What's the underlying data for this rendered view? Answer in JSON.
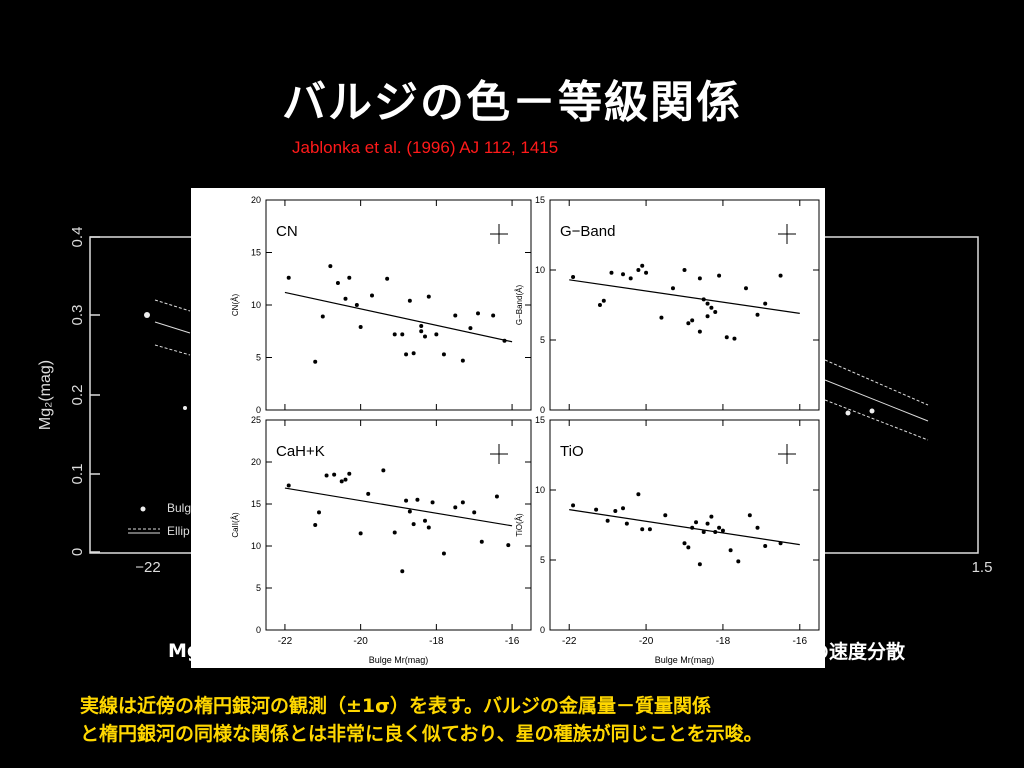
{
  "slide": {
    "title": "バルジの色－等級関係",
    "citation": "Jablonka et al. (1996) AJ 112, 1415",
    "caption_left": "Mg",
    "caption_right": "の速度分散",
    "footer_line1": "実線は近傍の楕円銀河の観測（±1σ）を表す。バルジの金属量－質量関係",
    "footer_line2": "と楕円銀河の同様な関係とは非常に良く似ており、星の種族が同じことを示唆。"
  },
  "background_figure": {
    "ylabel": "Mg₂(mag)",
    "yticks": [
      "0",
      "0.1",
      "0.2",
      "0.3",
      "0.4"
    ],
    "xticks_visible": [
      "−22",
      "1.5"
    ],
    "legend_items": [
      "Bulg",
      "Ellip"
    ]
  },
  "chart_data": [
    {
      "type": "scatter",
      "panel": "CN",
      "xlabel": "",
      "ylabel": "CN(Å)",
      "xlim": [
        -22.5,
        -15.5
      ],
      "ylim": [
        0,
        20
      ],
      "xticks": [],
      "yticks": [
        "0",
        "5",
        "10",
        "15",
        "20"
      ],
      "x": [
        -21.9,
        -21.2,
        -21.0,
        -20.8,
        -20.6,
        -20.4,
        -20.3,
        -20.1,
        -20.0,
        -19.7,
        -19.3,
        -19.1,
        -18.9,
        -18.8,
        -18.7,
        -18.6,
        -18.4,
        -18.4,
        -18.3,
        -18.2,
        -18.0,
        -17.8,
        -17.5,
        -17.3,
        -17.1,
        -16.9,
        -16.5,
        -16.2
      ],
      "y": [
        12.6,
        4.6,
        8.9,
        13.7,
        12.1,
        10.6,
        12.6,
        10.0,
        7.9,
        10.9,
        12.5,
        7.2,
        7.2,
        5.3,
        10.4,
        5.4,
        8.0,
        7.5,
        7.0,
        10.8,
        7.2,
        5.3,
        9.0,
        4.7,
        7.8,
        9.2,
        9.0,
        6.6
      ],
      "fit": {
        "x": [
          -22,
          -16
        ],
        "y": [
          11.2,
          6.5
        ]
      },
      "show_xtick_labels": false
    },
    {
      "type": "scatter",
      "panel": "G−Band",
      "xlabel": "",
      "ylabel": "G−Band(Å)",
      "xlim": [
        -22.5,
        -15.5
      ],
      "ylim": [
        0,
        15
      ],
      "xticks": [],
      "yticks": [
        "0",
        "5",
        "10",
        "15"
      ],
      "x": [
        -21.9,
        -21.2,
        -21.1,
        -20.9,
        -20.6,
        -20.4,
        -20.2,
        -20.1,
        -20.0,
        -19.6,
        -19.3,
        -19.0,
        -18.9,
        -18.8,
        -18.6,
        -18.6,
        -18.5,
        -18.4,
        -18.4,
        -18.3,
        -18.2,
        -18.1,
        -17.9,
        -17.7,
        -17.4,
        -17.1,
        -16.9,
        -16.5
      ],
      "y": [
        9.5,
        7.5,
        7.8,
        9.8,
        9.7,
        9.4,
        10.0,
        10.3,
        9.8,
        6.6,
        8.7,
        10.0,
        6.2,
        6.4,
        5.6,
        9.4,
        7.9,
        6.7,
        7.6,
        7.3,
        7.0,
        9.6,
        5.2,
        5.1,
        8.7,
        6.8,
        7.6,
        9.6
      ],
      "fit": {
        "x": [
          -22,
          -16
        ],
        "y": [
          9.3,
          6.9
        ]
      },
      "show_xtick_labels": false
    },
    {
      "type": "scatter",
      "panel": "CaH+K",
      "xlabel": "Bulge Mr(mag)",
      "ylabel": "CaII(Å)",
      "xlim": [
        -22.5,
        -15.5
      ],
      "ylim": [
        0,
        25
      ],
      "xticks": [
        "-22",
        "-20",
        "-18",
        "-16"
      ],
      "yticks": [
        "0",
        "5",
        "10",
        "15",
        "20",
        "25"
      ],
      "x": [
        -21.9,
        -21.2,
        -21.1,
        -20.9,
        -20.7,
        -20.5,
        -20.4,
        -20.3,
        -20.0,
        -19.8,
        -19.4,
        -19.1,
        -18.9,
        -18.8,
        -18.7,
        -18.6,
        -18.5,
        -18.3,
        -18.2,
        -18.1,
        -17.8,
        -17.5,
        -17.3,
        -17.0,
        -16.8,
        -16.4,
        -16.1
      ],
      "y": [
        17.2,
        12.5,
        14.0,
        18.4,
        18.5,
        17.7,
        17.9,
        18.6,
        11.5,
        16.2,
        19.0,
        11.6,
        7.0,
        15.4,
        14.1,
        12.6,
        15.5,
        13.0,
        12.2,
        15.2,
        9.1,
        14.6,
        15.2,
        14.0,
        10.5,
        15.9,
        10.1
      ],
      "fit": {
        "x": [
          -22,
          -16
        ],
        "y": [
          16.9,
          12.4
        ]
      },
      "show_xtick_labels": true
    },
    {
      "type": "scatter",
      "panel": "TiO",
      "xlabel": "Bulge Mr(mag)",
      "ylabel": "TiO(Å)",
      "xlim": [
        -22.5,
        -15.5
      ],
      "ylim": [
        0,
        15
      ],
      "xticks": [
        "-22",
        "-20",
        "-18",
        "-16"
      ],
      "yticks": [
        "0",
        "5",
        "10",
        "15"
      ],
      "x": [
        -21.9,
        -21.3,
        -21.0,
        -20.8,
        -20.6,
        -20.5,
        -20.2,
        -20.1,
        -19.9,
        -19.5,
        -19.0,
        -18.9,
        -18.8,
        -18.7,
        -18.6,
        -18.5,
        -18.4,
        -18.3,
        -18.2,
        -18.1,
        -18.0,
        -17.8,
        -17.6,
        -17.3,
        -17.1,
        -16.9,
        -16.5
      ],
      "y": [
        8.9,
        8.6,
        7.8,
        8.5,
        8.7,
        7.6,
        9.7,
        7.2,
        7.2,
        8.2,
        6.2,
        5.9,
        7.3,
        7.7,
        4.7,
        7.0,
        7.6,
        8.1,
        7.0,
        7.3,
        7.1,
        5.7,
        4.9,
        8.2,
        7.3,
        6.0,
        6.2
      ],
      "fit": {
        "x": [
          -22,
          -16
        ],
        "y": [
          8.6,
          6.1
        ]
      },
      "show_xtick_labels": true
    }
  ]
}
